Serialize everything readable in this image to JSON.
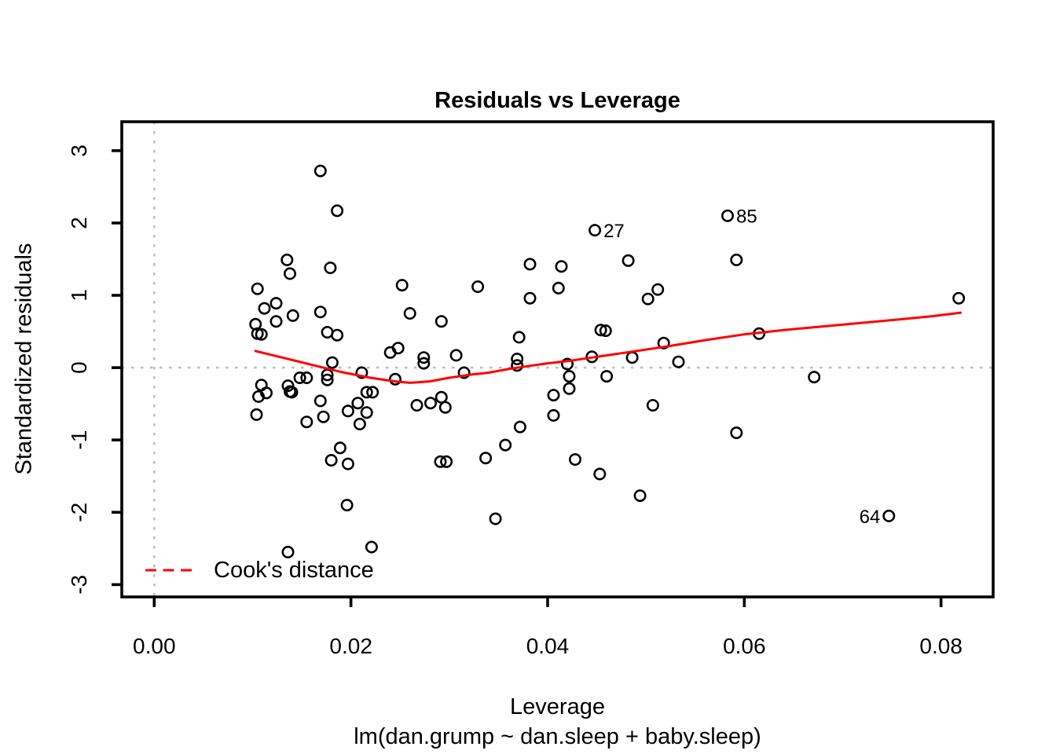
{
  "chart_data": {
    "type": "scatter",
    "title": "Residuals vs Leverage",
    "xlabel": "Leverage",
    "ylabel": "Standardized residuals",
    "model_caption": "lm(dan.grump ~ dan.sleep + baby.sleep)",
    "xlim": [
      -0.0033,
      0.0853
    ],
    "ylim": [
      -3.17,
      3.4
    ],
    "grid": false,
    "xticks": {
      "values": [
        0,
        0.02,
        0.04,
        0.06,
        0.08
      ],
      "labels": [
        "0.00",
        "0.02",
        "0.04",
        "0.06",
        "0.08"
      ]
    },
    "yticks": {
      "values": [
        -3,
        -2,
        -1,
        0,
        1,
        2,
        3
      ],
      "labels": [
        "-3",
        "-2",
        "-1",
        "0",
        "1",
        "2",
        "3"
      ]
    },
    "ref_lines": {
      "vertical_x": 0,
      "horizontal_y": 0
    },
    "legend": {
      "label": "Cook's distance",
      "position": "bottom-left",
      "line_style": "dashed"
    },
    "colors": {
      "smooth_line": "#FF0000",
      "ref_line": "#BEBEBE",
      "point_stroke": "#000000"
    },
    "labeled_points": [
      {
        "label": "27",
        "x": 0.0448,
        "y": 1.9,
        "side": "right"
      },
      {
        "label": "85",
        "x": 0.0583,
        "y": 2.1,
        "side": "right"
      },
      {
        "label": "64",
        "x": 0.0747,
        "y": -2.05,
        "side": "left"
      }
    ],
    "smooth_line": [
      [
        0.0103,
        0.23
      ],
      [
        0.013,
        0.14
      ],
      [
        0.016,
        0.04
      ],
      [
        0.019,
        -0.06
      ],
      [
        0.022,
        -0.14
      ],
      [
        0.0245,
        -0.19
      ],
      [
        0.026,
        -0.21
      ],
      [
        0.028,
        -0.19
      ],
      [
        0.03,
        -0.14
      ],
      [
        0.032,
        -0.1
      ],
      [
        0.034,
        -0.07
      ],
      [
        0.036,
        -0.02
      ],
      [
        0.038,
        0.02
      ],
      [
        0.04,
        0.06
      ],
      [
        0.042,
        0.09
      ],
      [
        0.045,
        0.15
      ],
      [
        0.048,
        0.21
      ],
      [
        0.052,
        0.29
      ],
      [
        0.056,
        0.38
      ],
      [
        0.06,
        0.46
      ],
      [
        0.064,
        0.52
      ],
      [
        0.068,
        0.57
      ],
      [
        0.072,
        0.62
      ],
      [
        0.076,
        0.67
      ],
      [
        0.079,
        0.71
      ],
      [
        0.082,
        0.76
      ]
    ],
    "points": [
      [
        0.0169,
        2.72
      ],
      [
        0.0186,
        2.17
      ],
      [
        0.0135,
        1.49
      ],
      [
        0.0138,
        1.3
      ],
      [
        0.0179,
        1.38
      ],
      [
        0.0105,
        1.09
      ],
      [
        0.0252,
        1.14
      ],
      [
        0.0329,
        1.12
      ],
      [
        0.0112,
        0.82
      ],
      [
        0.0124,
        0.89
      ],
      [
        0.0141,
        0.72
      ],
      [
        0.0169,
        0.77
      ],
      [
        0.0124,
        0.64
      ],
      [
        0.0103,
        0.6
      ],
      [
        0.0105,
        0.47
      ],
      [
        0.0109,
        0.46
      ],
      [
        0.0176,
        0.49
      ],
      [
        0.0186,
        0.45
      ],
      [
        0.024,
        0.21
      ],
      [
        0.0248,
        0.27
      ],
      [
        0.0274,
        0.14
      ],
      [
        0.0274,
        0.06
      ],
      [
        0.0307,
        0.17
      ],
      [
        0.0292,
        0.64
      ],
      [
        0.026,
        0.75
      ],
      [
        0.0181,
        0.07
      ],
      [
        0.0583,
        2.1
      ],
      [
        0.0448,
        1.9
      ],
      [
        0.0482,
        1.48
      ],
      [
        0.0592,
        1.49
      ],
      [
        0.0382,
        1.43
      ],
      [
        0.0414,
        1.4
      ],
      [
        0.0411,
        1.1
      ],
      [
        0.0382,
        0.96
      ],
      [
        0.0512,
        1.08
      ],
      [
        0.0502,
        0.95
      ],
      [
        0.0454,
        0.52
      ],
      [
        0.0459,
        0.51
      ],
      [
        0.0371,
        0.42
      ],
      [
        0.0518,
        0.34
      ],
      [
        0.0615,
        0.47
      ],
      [
        0.0369,
        0.12
      ],
      [
        0.0369,
        0.03
      ],
      [
        0.0445,
        0.15
      ],
      [
        0.042,
        0.05
      ],
      [
        0.0486,
        0.14
      ],
      [
        0.0533,
        0.08
      ],
      [
        0.0818,
        0.96
      ],
      [
        0.0148,
        -0.14
      ],
      [
        0.0155,
        -0.14
      ],
      [
        0.0176,
        -0.1
      ],
      [
        0.0176,
        -0.17
      ],
      [
        0.0211,
        -0.07
      ],
      [
        0.0245,
        -0.16
      ],
      [
        0.0315,
        -0.07
      ],
      [
        0.0109,
        -0.24
      ],
      [
        0.0106,
        -0.4
      ],
      [
        0.0114,
        -0.35
      ],
      [
        0.0136,
        -0.25
      ],
      [
        0.0138,
        -0.33
      ],
      [
        0.014,
        -0.34
      ],
      [
        0.0216,
        -0.34
      ],
      [
        0.0222,
        -0.34
      ],
      [
        0.0169,
        -0.46
      ],
      [
        0.0207,
        -0.49
      ],
      [
        0.0197,
        -0.6
      ],
      [
        0.0216,
        -0.62
      ],
      [
        0.0155,
        -0.75
      ],
      [
        0.0172,
        -0.68
      ],
      [
        0.0104,
        -0.65
      ],
      [
        0.0209,
        -0.78
      ],
      [
        0.0267,
        -0.52
      ],
      [
        0.0281,
        -0.49
      ],
      [
        0.0292,
        -0.41
      ],
      [
        0.0296,
        -0.55
      ],
      [
        0.0189,
        -1.11
      ],
      [
        0.018,
        -1.28
      ],
      [
        0.0197,
        -1.33
      ],
      [
        0.0291,
        -1.3
      ],
      [
        0.0297,
        -1.3
      ],
      [
        0.0337,
        -1.25
      ],
      [
        0.0196,
        -1.9
      ],
      [
        0.0221,
        -2.48
      ],
      [
        0.0136,
        -2.55
      ],
      [
        0.0422,
        -0.12
      ],
      [
        0.0422,
        -0.29
      ],
      [
        0.0406,
        -0.38
      ],
      [
        0.046,
        -0.12
      ],
      [
        0.0507,
        -0.52
      ],
      [
        0.0406,
        -0.66
      ],
      [
        0.0372,
        -0.82
      ],
      [
        0.0357,
        -1.07
      ],
      [
        0.0592,
        -0.9
      ],
      [
        0.0428,
        -1.27
      ],
      [
        0.0453,
        -1.47
      ],
      [
        0.0494,
        -1.77
      ],
      [
        0.0347,
        -2.09
      ],
      [
        0.0671,
        -0.13
      ],
      [
        0.0747,
        -2.05
      ]
    ]
  }
}
